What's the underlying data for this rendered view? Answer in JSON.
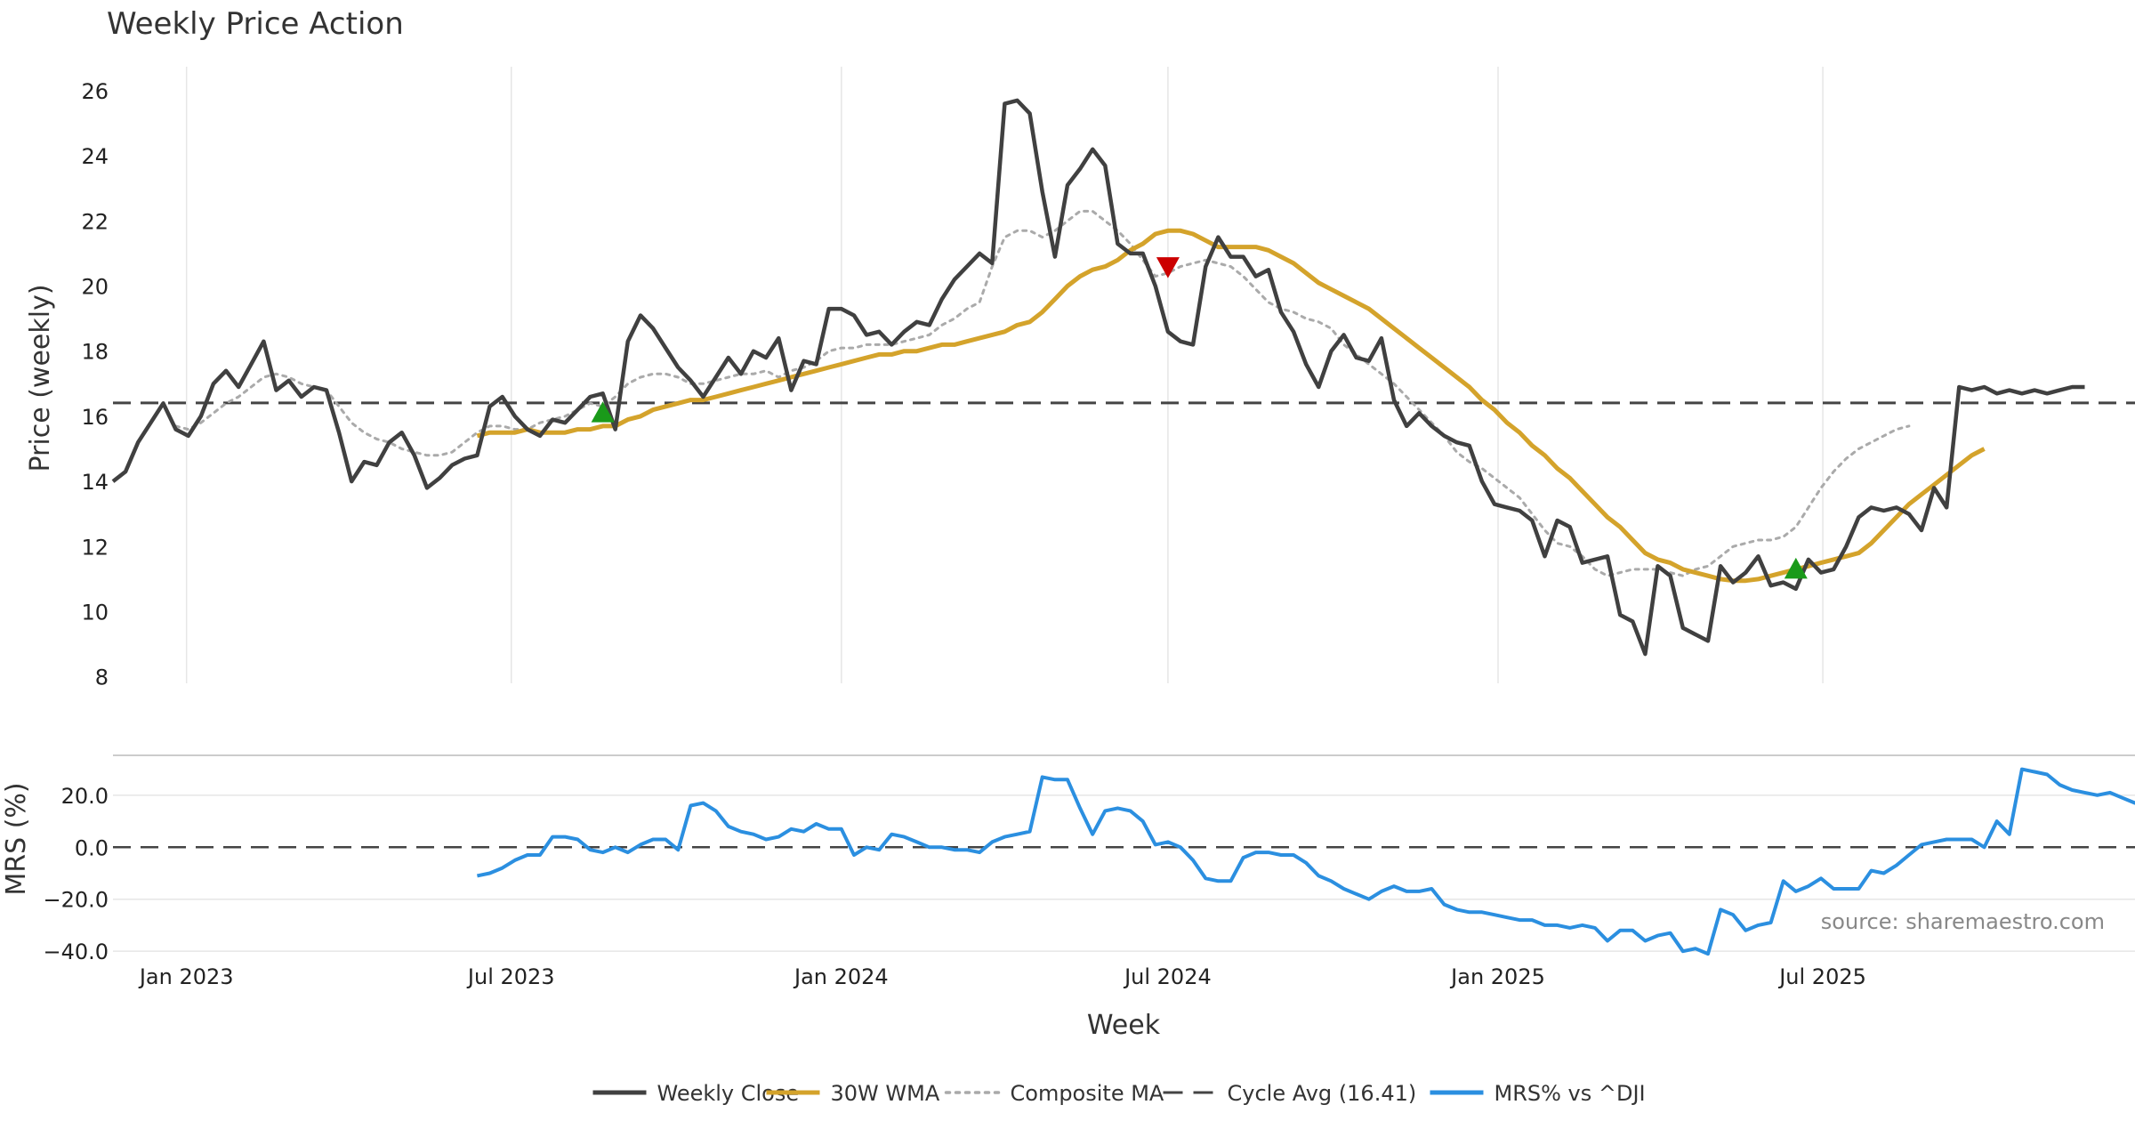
{
  "title": "Weekly Price Action",
  "source_note": "source: sharemaestro.com",
  "colors": {
    "weekly_close": "#404040",
    "wma": "#D4A32B",
    "composite": "#AAAAAA",
    "cycle_avg": "#444444",
    "mrs": "#2B8FE0",
    "buy_signal": "#1A9A1A",
    "sell_signal": "#CC0000",
    "grid": "#E6E6E6"
  },
  "chart_data": [
    {
      "type": "line",
      "panel": "price",
      "xlabel": "Week",
      "ylabel": "Price (weekly)",
      "x_start": "2022-11-21",
      "x_interval_days": 7,
      "xlim": [
        "2022-11-21",
        "2025-12-22"
      ],
      "ylim": [
        7.8,
        26.6
      ],
      "yticks": [
        8,
        10,
        12,
        14,
        16,
        18,
        20,
        22,
        24,
        26
      ],
      "grid": true,
      "series": [
        {
          "name": "Weekly Close",
          "start_index": 0,
          "values": [
            14.0,
            14.3,
            15.2,
            15.8,
            16.4,
            15.6,
            15.4,
            16.0,
            17.0,
            17.4,
            16.9,
            17.6,
            18.3,
            16.8,
            17.1,
            16.6,
            16.9,
            16.8,
            15.5,
            14.0,
            14.6,
            14.5,
            15.2,
            15.5,
            14.8,
            13.8,
            14.1,
            14.5,
            14.7,
            14.8,
            16.3,
            16.6,
            16.0,
            15.6,
            15.4,
            15.9,
            15.8,
            16.2,
            16.6,
            16.7,
            15.6,
            18.3,
            19.1,
            18.7,
            18.1,
            17.5,
            17.1,
            16.6,
            17.2,
            17.8,
            17.3,
            18.0,
            17.8,
            18.4,
            16.8,
            17.7,
            17.6,
            19.3,
            19.3,
            19.1,
            18.5,
            18.6,
            18.2,
            18.6,
            18.9,
            18.8,
            19.6,
            20.2,
            20.6,
            21.0,
            20.7,
            25.6,
            25.7,
            25.3,
            22.9,
            20.9,
            23.1,
            23.6,
            24.2,
            23.7,
            21.3,
            21.0,
            21.0,
            20.0,
            18.6,
            18.3,
            18.2,
            20.6,
            21.5,
            20.9,
            20.9,
            20.3,
            20.5,
            19.2,
            18.6,
            17.6,
            16.9,
            18.0,
            18.5,
            17.8,
            17.7,
            18.4,
            16.5,
            15.7,
            16.1,
            15.7,
            15.4,
            15.2,
            15.1,
            14.0,
            13.3,
            13.2,
            13.1,
            12.8,
            11.7,
            12.8,
            12.6,
            11.5,
            11.6,
            11.7,
            9.9,
            9.7,
            8.7,
            11.4,
            11.1,
            9.5,
            9.3,
            9.1,
            11.4,
            10.9,
            11.2,
            11.7,
            10.8,
            10.9,
            10.7,
            11.6,
            11.2,
            11.3,
            12.0,
            12.9,
            13.2,
            13.1,
            13.2,
            13.0,
            12.5,
            13.8,
            13.2,
            16.9,
            16.8,
            16.9,
            16.7,
            16.8,
            16.7,
            16.8,
            16.7,
            16.8,
            16.9,
            16.9
          ]
        },
        {
          "name": "30W WMA",
          "start_index": 29,
          "values": [
            15.4,
            15.5,
            15.5,
            15.5,
            15.6,
            15.5,
            15.5,
            15.5,
            15.6,
            15.6,
            15.7,
            15.7,
            15.9,
            16.0,
            16.2,
            16.3,
            16.4,
            16.5,
            16.5,
            16.6,
            16.7,
            16.8,
            16.9,
            17.0,
            17.1,
            17.2,
            17.3,
            17.4,
            17.5,
            17.6,
            17.7,
            17.8,
            17.9,
            17.9,
            18.0,
            18.0,
            18.1,
            18.2,
            18.2,
            18.3,
            18.4,
            18.5,
            18.6,
            18.8,
            18.9,
            19.2,
            19.6,
            20.0,
            20.3,
            20.5,
            20.6,
            20.8,
            21.1,
            21.3,
            21.6,
            21.7,
            21.7,
            21.6,
            21.4,
            21.2,
            21.2,
            21.2,
            21.2,
            21.1,
            20.9,
            20.7,
            20.4,
            20.1,
            19.9,
            19.7,
            19.5,
            19.3,
            19.0,
            18.7,
            18.4,
            18.1,
            17.8,
            17.5,
            17.2,
            16.9,
            16.5,
            16.2,
            15.8,
            15.5,
            15.1,
            14.8,
            14.4,
            14.1,
            13.7,
            13.3,
            12.9,
            12.6,
            12.2,
            11.8,
            11.6,
            11.5,
            11.3,
            11.2,
            11.1,
            11.0,
            10.95,
            10.95,
            11.0,
            11.1,
            11.2,
            11.3,
            11.4,
            11.5,
            11.6,
            11.7,
            11.8,
            12.1,
            12.5,
            12.9,
            13.3,
            13.6,
            13.9,
            14.2,
            14.5,
            14.8,
            15.0
          ]
        },
        {
          "name": "Composite MA",
          "start_index": 5,
          "values": [
            15.7,
            15.6,
            15.8,
            16.1,
            16.4,
            16.6,
            16.9,
            17.2,
            17.3,
            17.2,
            17.0,
            16.9,
            16.8,
            16.3,
            15.8,
            15.5,
            15.3,
            15.2,
            15.0,
            14.9,
            14.8,
            14.8,
            14.9,
            15.2,
            15.5,
            15.7,
            15.7,
            15.6,
            15.6,
            15.8,
            15.9,
            16.0,
            16.2,
            16.4,
            16.3,
            16.6,
            17.0,
            17.2,
            17.3,
            17.3,
            17.2,
            17.0,
            17.0,
            17.1,
            17.2,
            17.3,
            17.3,
            17.4,
            17.2,
            17.4,
            17.5,
            17.7,
            18.0,
            18.1,
            18.1,
            18.2,
            18.2,
            18.2,
            18.3,
            18.4,
            18.5,
            18.8,
            19.0,
            19.3,
            19.5,
            20.6,
            21.5,
            21.7,
            21.7,
            21.5,
            21.7,
            22.0,
            22.3,
            22.3,
            22.0,
            21.7,
            21.3,
            20.8,
            20.3,
            20.4,
            20.6,
            20.7,
            20.8,
            20.7,
            20.6,
            20.3,
            19.9,
            19.5,
            19.3,
            19.2,
            19.0,
            18.9,
            18.7,
            18.2,
            17.9,
            17.6,
            17.3,
            17.0,
            16.6,
            16.2,
            15.8,
            15.4,
            14.9,
            14.6,
            14.4,
            14.1,
            13.8,
            13.5,
            13.0,
            12.5,
            12.1,
            12.0,
            11.7,
            11.3,
            11.1,
            11.2,
            11.3,
            11.3,
            11.3,
            11.2,
            11.1,
            11.3,
            11.4,
            11.7,
            12.0,
            12.1,
            12.2,
            12.2,
            12.3,
            12.6,
            13.2,
            13.8,
            14.3,
            14.7,
            15.0,
            15.2,
            15.4,
            15.6,
            15.7
          ]
        }
      ],
      "reference_lines": [
        {
          "name": "Cycle Avg (16.41)",
          "y": 16.41,
          "style": "dashed"
        }
      ],
      "markers": [
        {
          "type": "buy",
          "shape": "triangle-up",
          "x_index": 39,
          "y": 16.1
        },
        {
          "type": "sell",
          "shape": "triangle-down",
          "x_index": 84,
          "y": 20.6
        },
        {
          "type": "buy",
          "shape": "triangle-up",
          "x_index": 134,
          "y": 11.3
        }
      ]
    },
    {
      "type": "line",
      "panel": "mrs",
      "xlabel": "Week",
      "ylabel": "MRS (%)",
      "ylim": [
        -42,
        35
      ],
      "yticks": [
        -40.0,
        -20.0,
        0.0,
        20.0
      ],
      "ytick_labels": [
        "−40.0",
        "−20.0",
        "0.0",
        "20.0"
      ],
      "xticks": [
        "Jan 2023",
        "Jul 2023",
        "Jan 2024",
        "Jul 2024",
        "Jan 2025",
        "Jul 2025"
      ],
      "xtick_dates": [
        "2023-01-01",
        "2023-07-01",
        "2024-01-01",
        "2024-07-01",
        "2025-01-01",
        "2025-07-01"
      ],
      "grid": true,
      "reference_lines": [
        {
          "name": "zero",
          "y": 0,
          "style": "dashed"
        }
      ],
      "series": [
        {
          "name": "MRS% vs ^DJI",
          "start_index": 29,
          "values": [
            -11,
            -10,
            -8,
            -5,
            -3,
            -3,
            4,
            4,
            3,
            -1,
            -2,
            0,
            -2,
            1,
            3,
            3,
            -1,
            16,
            17,
            14,
            8,
            6,
            5,
            3,
            4,
            7,
            6,
            9,
            7,
            7,
            -3,
            0,
            -1,
            5,
            4,
            2,
            0,
            0,
            -1,
            -1,
            -2,
            2,
            4,
            5,
            6,
            27,
            26,
            26,
            15,
            5,
            14,
            15,
            14,
            10,
            1,
            2,
            0,
            -5,
            -12,
            -13,
            -13,
            -4,
            -2,
            -2,
            -3,
            -3,
            -6,
            -11,
            -13,
            -16,
            -18,
            -20,
            -17,
            -15,
            -17,
            -17,
            -16,
            -22,
            -24,
            -25,
            -25,
            -26,
            -27,
            -28,
            -28,
            -30,
            -30,
            -31,
            -30,
            -31,
            -36,
            -32,
            -32,
            -36,
            -34,
            -33,
            -40,
            -39,
            -41,
            -24,
            -26,
            -32,
            -30,
            -29,
            -13,
            -17,
            -15,
            -12,
            -16,
            -16,
            -16,
            -9,
            -10,
            -7,
            -3,
            1,
            2,
            3,
            3,
            3,
            0,
            10,
            5,
            30,
            29,
            28,
            24,
            22,
            21,
            20,
            21,
            19,
            17,
            16
          ]
        }
      ]
    }
  ],
  "legend": {
    "placement": "bottom-center",
    "items": [
      {
        "label": "Weekly Close",
        "style": "solid",
        "color_key": "weekly_close"
      },
      {
        "label": "30W WMA",
        "style": "solid",
        "color_key": "wma"
      },
      {
        "label": "Composite MA",
        "style": "dotted",
        "color_key": "composite"
      },
      {
        "label": "Cycle Avg (16.41)",
        "style": "dashed",
        "color_key": "cycle_avg"
      },
      {
        "label": "MRS% vs ^DJI",
        "style": "solid",
        "color_key": "mrs"
      }
    ]
  }
}
